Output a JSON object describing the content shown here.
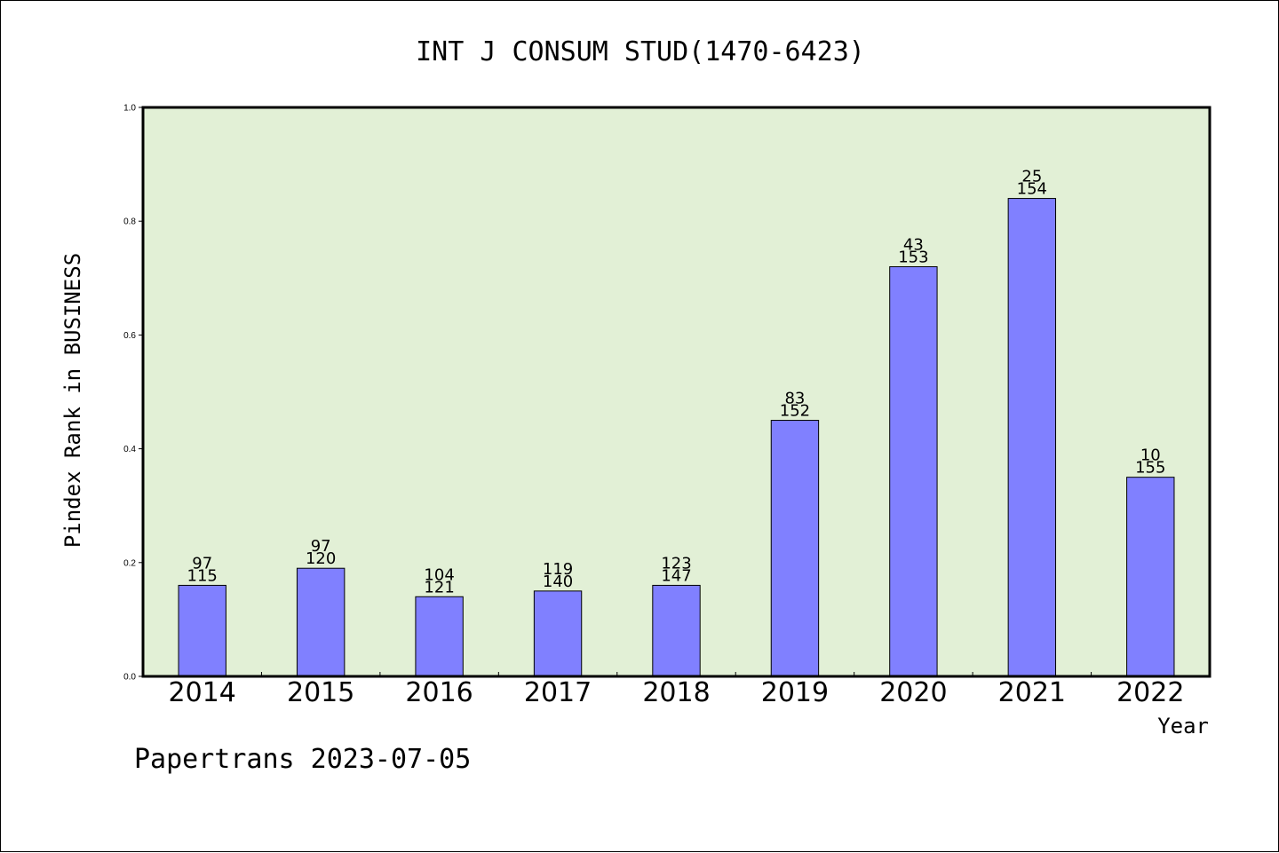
{
  "chart_data": {
    "type": "bar",
    "title": "INT J CONSUM STUD(1470-6423)",
    "ylabel": "Pindex Rank in BUSINESS",
    "xlabel": "Year",
    "footer": "Papertrans 2023-07-05",
    "categories": [
      "2014",
      "2015",
      "2016",
      "2017",
      "2018",
      "2019",
      "2020",
      "2021",
      "2022"
    ],
    "values": [
      0.16,
      0.19,
      0.14,
      0.15,
      0.16,
      0.45,
      0.72,
      0.84,
      0.35
    ],
    "rank_labels": [
      "97",
      "97",
      "104",
      "119",
      "123",
      "83",
      "43",
      "25",
      "10"
    ],
    "total_labels": [
      "115",
      "120",
      "121",
      "140",
      "147",
      "152",
      "153",
      "154",
      "155"
    ],
    "ylim": [
      0,
      1.0
    ],
    "yticks": [
      "0.0",
      "0.2",
      "0.4",
      "0.6",
      "0.8",
      "1.0"
    ],
    "grid": false,
    "colors": {
      "bar": "#8080ff",
      "plot_background": "#e2f0d6",
      "axis": "#000000"
    }
  }
}
